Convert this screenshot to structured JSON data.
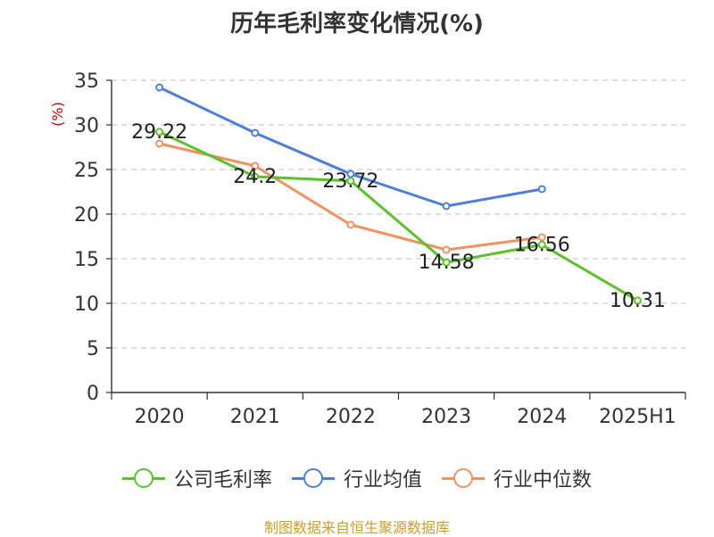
{
  "chart_data": {
    "type": "line",
    "title": "历年毛利率变化情况(%)",
    "ylabel": "(%)",
    "xlabel": "",
    "categories": [
      "2020",
      "2021",
      "2022",
      "2023",
      "2024",
      "2025H1"
    ],
    "ylim": [
      0,
      35
    ],
    "yticks": [
      0,
      5,
      10,
      15,
      20,
      25,
      30,
      35
    ],
    "grid": true,
    "legend_position": "bottom",
    "series": [
      {
        "name": "公司毛利率",
        "color": "#5cc22c",
        "values": [
          29.22,
          24.2,
          23.72,
          14.58,
          16.56,
          10.31
        ],
        "labels": [
          "29.22",
          "24.2",
          "23.72",
          "14.58",
          "16.56",
          "10.31"
        ]
      },
      {
        "name": "行业均值",
        "color": "#4d7fd8",
        "values": [
          34.2,
          29.1,
          24.5,
          20.9,
          22.8,
          null
        ]
      },
      {
        "name": "行业中位数",
        "color": "#f29160",
        "values": [
          27.9,
          25.4,
          18.8,
          16.0,
          17.4,
          null
        ]
      }
    ]
  },
  "source_note": "制图数据来自恒生聚源数据库"
}
